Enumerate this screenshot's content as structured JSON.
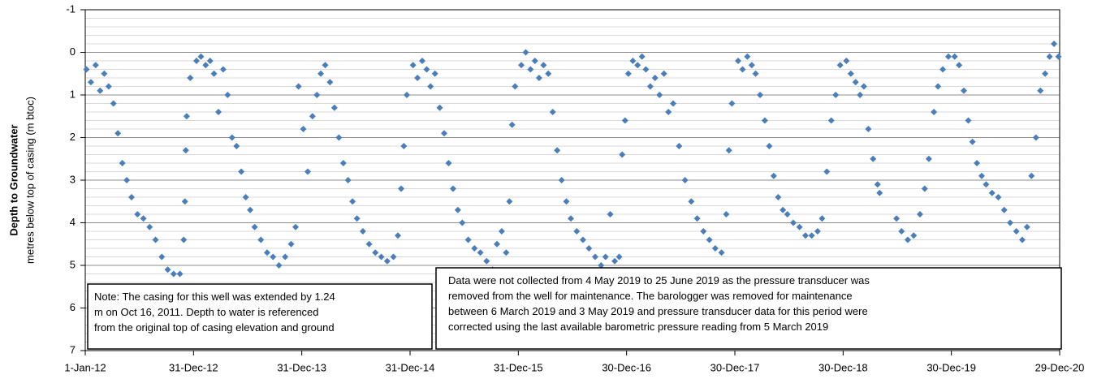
{
  "chart_data": {
    "type": "scatter",
    "ylabel": "Depth to Groundwater",
    "ylabel2": "metres below top of casing (m btoc)",
    "ylim": [
      -1,
      7
    ],
    "yticks": [
      -1,
      0,
      1,
      2,
      3,
      4,
      5,
      6,
      7
    ],
    "y_inverted": true,
    "grid": true,
    "minor_grid_step": 0.2,
    "xlim": [
      "2012-01-01",
      "2020-12-29"
    ],
    "xticks": [
      {
        "value": "2012-01-01",
        "label": "1-Jan-12"
      },
      {
        "value": "2012-12-31",
        "label": "31-Dec-12"
      },
      {
        "value": "2013-12-31",
        "label": "31-Dec-13"
      },
      {
        "value": "2014-12-31",
        "label": "31-Dec-14"
      },
      {
        "value": "2015-12-31",
        "label": "31-Dec-15"
      },
      {
        "value": "2016-12-30",
        "label": "30-Dec-16"
      },
      {
        "value": "2017-12-30",
        "label": "30-Dec-17"
      },
      {
        "value": "2018-12-30",
        "label": "30-Dec-18"
      },
      {
        "value": "2019-12-30",
        "label": "30-Dec-19"
      },
      {
        "value": "2020-12-29",
        "label": "29-Dec-20"
      }
    ],
    "color": "#4a7ebb",
    "annotations": [
      [
        "Note: The casing for this well was extended by 1.24",
        "m on Oct 16, 2011.  Depth to water is referenced",
        "from the original top of casing elevation  and ground"
      ],
      [
        "Data were not collected from 4 May 2019 to 25 June 2019 as the pressure transducer was",
        "removed from the well for maintenance. The barologger was removed for maintenance",
        "between 6 March 2019 and 3 May 2019 and pressure transducer data for this period were",
        "corrected using the last available barometric pressure reading from 5 March 2019"
      ]
    ],
    "x": [
      "2012-01-05",
      "2012-01-20",
      "2012-02-05",
      "2012-02-20",
      "2012-03-05",
      "2012-03-20",
      "2012-04-05",
      "2012-04-20",
      "2012-05-05",
      "2012-05-20",
      "2012-06-05",
      "2012-06-25",
      "2012-07-15",
      "2012-08-05",
      "2012-08-25",
      "2012-09-15",
      "2012-10-05",
      "2012-10-25",
      "2012-11-15",
      "2012-11-28",
      "2012-12-02",
      "2012-12-05",
      "2012-12-08",
      "2012-12-20",
      "2013-01-10",
      "2013-01-25",
      "2013-02-10",
      "2013-02-25",
      "2013-03-10",
      "2013-03-25",
      "2013-04-10",
      "2013-04-25",
      "2013-05-10",
      "2013-05-25",
      "2013-06-10",
      "2013-06-25",
      "2013-07-10",
      "2013-07-25",
      "2013-08-15",
      "2013-09-05",
      "2013-09-25",
      "2013-10-15",
      "2013-11-05",
      "2013-11-25",
      "2013-12-10",
      "2013-12-20",
      "2014-01-05",
      "2014-01-20",
      "2014-02-05",
      "2014-02-20",
      "2014-03-05",
      "2014-03-20",
      "2014-04-05",
      "2014-04-20",
      "2014-05-05",
      "2014-05-20",
      "2014-06-05",
      "2014-06-20",
      "2014-07-05",
      "2014-07-25",
      "2014-08-15",
      "2014-09-05",
      "2014-09-25",
      "2014-10-15",
      "2014-11-05",
      "2014-11-20",
      "2014-12-01",
      "2014-12-10",
      "2014-12-20",
      "2015-01-10",
      "2015-01-25",
      "2015-02-10",
      "2015-02-25",
      "2015-03-10",
      "2015-03-25",
      "2015-04-10",
      "2015-04-25",
      "2015-05-10",
      "2015-05-25",
      "2015-06-10",
      "2015-06-25",
      "2015-07-15",
      "2015-08-05",
      "2015-08-25",
      "2015-09-15",
      "2015-10-05",
      "2015-10-20",
      "2015-11-05",
      "2015-11-20",
      "2015-12-01",
      "2015-12-10",
      "2015-12-20",
      "2016-01-10",
      "2016-01-25",
      "2016-02-10",
      "2016-02-25",
      "2016-03-10",
      "2016-03-25",
      "2016-04-10",
      "2016-04-25",
      "2016-05-10",
      "2016-05-25",
      "2016-06-10",
      "2016-06-25",
      "2016-07-15",
      "2016-08-05",
      "2016-08-25",
      "2016-09-15",
      "2016-10-05",
      "2016-10-20",
      "2016-11-05",
      "2016-11-20",
      "2016-12-05",
      "2016-12-15",
      "2016-12-25",
      "2017-01-05",
      "2017-01-20",
      "2017-02-05",
      "2017-02-20",
      "2017-03-05",
      "2017-03-20",
      "2017-04-05",
      "2017-04-20",
      "2017-05-05",
      "2017-05-20",
      "2017-06-05",
      "2017-06-25",
      "2017-07-15",
      "2017-08-05",
      "2017-08-25",
      "2017-09-15",
      "2017-10-05",
      "2017-10-25",
      "2017-11-15",
      "2017-12-01",
      "2017-12-10",
      "2017-12-20",
      "2018-01-10",
      "2018-01-25",
      "2018-02-10",
      "2018-02-25",
      "2018-03-10",
      "2018-03-25",
      "2018-04-10",
      "2018-04-25",
      "2018-05-10",
      "2018-05-25",
      "2018-06-10",
      "2018-06-25",
      "2018-07-15",
      "2018-08-05",
      "2018-08-25",
      "2018-09-15",
      "2018-10-05",
      "2018-10-20",
      "2018-11-05",
      "2018-11-20",
      "2018-12-05",
      "2018-12-20",
      "2019-01-10",
      "2019-01-25",
      "2019-02-10",
      "2019-02-25",
      "2019-03-10",
      "2019-03-25",
      "2019-04-10",
      "2019-04-25",
      "2019-05-02",
      "2019-06-28",
      "2019-07-15",
      "2019-08-05",
      "2019-08-25",
      "2019-09-15",
      "2019-10-01",
      "2019-10-15",
      "2019-11-01",
      "2019-11-15",
      "2019-12-01",
      "2019-12-20",
      "2020-01-10",
      "2020-01-25",
      "2020-02-10",
      "2020-02-25",
      "2020-03-10",
      "2020-03-25",
      "2020-04-10",
      "2020-04-25",
      "2020-05-15",
      "2020-06-05",
      "2020-06-25",
      "2020-07-15",
      "2020-08-05",
      "2020-08-25",
      "2020-09-10",
      "2020-09-25",
      "2020-10-10",
      "2020-10-25",
      "2020-11-10",
      "2020-11-25",
      "2020-12-10",
      "2020-12-25"
    ],
    "values": [
      0.4,
      0.7,
      0.3,
      0.9,
      0.5,
      0.8,
      1.2,
      1.9,
      2.6,
      3.0,
      3.4,
      3.8,
      3.9,
      4.1,
      4.4,
      4.8,
      5.1,
      5.2,
      5.2,
      4.4,
      3.5,
      2.3,
      1.5,
      0.6,
      0.2,
      0.1,
      0.3,
      0.2,
      0.5,
      1.4,
      0.4,
      1.0,
      2.0,
      2.2,
      2.8,
      3.4,
      3.7,
      4.1,
      4.4,
      4.7,
      4.8,
      5.0,
      4.8,
      4.5,
      4.1,
      0.8,
      1.8,
      2.8,
      1.5,
      1.0,
      0.5,
      0.3,
      0.7,
      1.3,
      2.0,
      2.6,
      3.0,
      3.5,
      3.9,
      4.2,
      4.5,
      4.7,
      4.8,
      4.9,
      4.8,
      4.3,
      3.2,
      2.2,
      1.0,
      0.3,
      0.6,
      0.2,
      0.4,
      0.8,
      0.5,
      1.3,
      1.9,
      2.6,
      3.2,
      3.7,
      4.0,
      4.4,
      4.6,
      4.7,
      4.9,
      5.1,
      4.5,
      4.2,
      4.7,
      3.5,
      1.7,
      0.8,
      0.3,
      0.0,
      0.4,
      0.2,
      0.6,
      0.3,
      0.5,
      1.4,
      2.3,
      3.0,
      3.5,
      3.9,
      4.2,
      4.4,
      4.6,
      4.8,
      5.0,
      4.8,
      3.8,
      4.9,
      4.8,
      2.4,
      1.6,
      0.5,
      0.2,
      0.3,
      0.1,
      0.4,
      0.8,
      0.6,
      1.0,
      0.5,
      1.4,
      1.2,
      2.2,
      3.0,
      3.5,
      3.9,
      4.2,
      4.4,
      4.6,
      4.7,
      3.8,
      2.3,
      1.2,
      0.2,
      0.4,
      0.1,
      0.3,
      0.5,
      1.0,
      1.6,
      2.2,
      2.9,
      3.4,
      3.7,
      3.8,
      4.0,
      4.1,
      4.3,
      4.3,
      4.2,
      3.9,
      2.8,
      1.6,
      1.0,
      0.3,
      0.2,
      0.5,
      0.7,
      1.0,
      0.8,
      1.8,
      2.5,
      3.1,
      3.3,
      3.9,
      4.2,
      4.4,
      4.3,
      3.8,
      3.2,
      2.5,
      1.4,
      0.8,
      0.4,
      0.1,
      0.1,
      0.3,
      0.9,
      1.6,
      2.1,
      2.6,
      2.9,
      3.1,
      3.3,
      3.4,
      3.7,
      4.0,
      4.2,
      4.4,
      4.1,
      2.9,
      2.0,
      0.9,
      0.5,
      0.1,
      -0.2,
      0.1
    ]
  }
}
